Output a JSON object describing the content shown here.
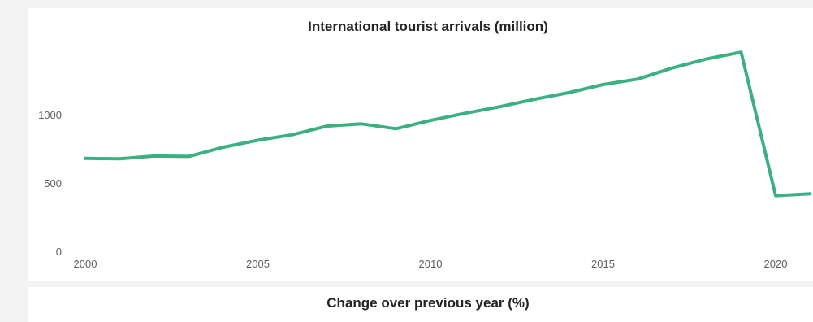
{
  "chart_data": [
    {
      "type": "line",
      "title": "International tourist arrivals (million)",
      "xlabel": "",
      "ylabel": "",
      "x": [
        2000,
        2001,
        2002,
        2003,
        2004,
        2005,
        2006,
        2007,
        2008,
        2009,
        2010,
        2011,
        2012,
        2013,
        2014,
        2015,
        2016,
        2017,
        2018,
        2019,
        2020,
        2021
      ],
      "series": [
        {
          "values": [
            680,
            677,
            697,
            694,
            762,
            813,
            853,
            916,
            933,
            897,
            958,
            1010,
            1058,
            1112,
            1161,
            1220,
            1260,
            1341,
            1408,
            1457,
            407,
            421
          ]
        }
      ],
      "xlim": [
        1999.7,
        2021.2
      ],
      "ylim": [
        0,
        1600
      ],
      "x_ticks": [
        2000,
        2005,
        2010,
        2015,
        2020
      ],
      "y_ticks": [
        0,
        500,
        1000
      ],
      "grid": false,
      "line_color": "#3bb082"
    },
    {
      "type": "line",
      "title": "Change over previous year (%)"
    }
  ]
}
